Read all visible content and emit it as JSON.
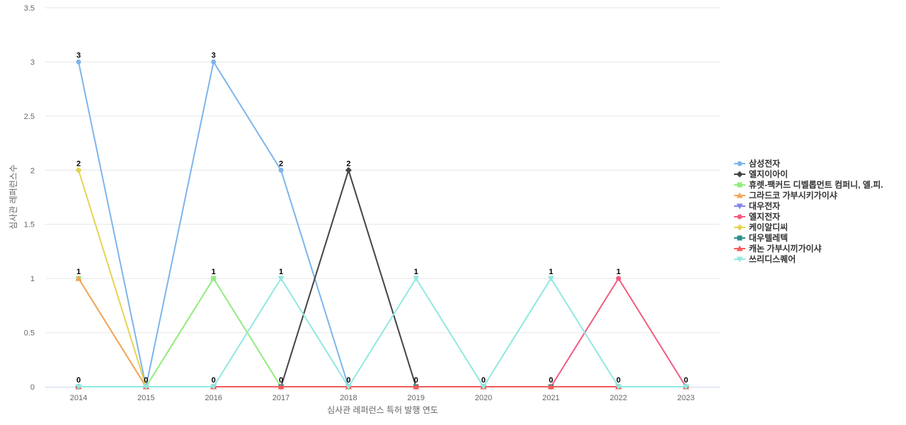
{
  "chart_data": {
    "type": "line",
    "xlabel": "심사관 레퍼런스 특허 발행 연도",
    "ylabel": "심사관 레퍼런스수",
    "ylim": [
      0,
      3.5
    ],
    "yticks": [
      0,
      0.5,
      1,
      1.5,
      2,
      2.5,
      3,
      3.5
    ],
    "grid": true,
    "legend_position": "right",
    "x": [
      "2014",
      "2015",
      "2016",
      "2017",
      "2018",
      "2019",
      "2020",
      "2021",
      "2022",
      "2023"
    ],
    "series": [
      {
        "name": "삼성전자",
        "color": "#7cb5ec",
        "marker": "circle",
        "values": [
          3,
          0,
          3,
          2,
          0,
          0,
          0,
          0,
          0,
          0
        ]
      },
      {
        "name": "엘지이아이",
        "color": "#434348",
        "marker": "diamond",
        "values": [
          0,
          0,
          0,
          0,
          2,
          0,
          0,
          0,
          0,
          0
        ]
      },
      {
        "name": "휴렛-팩커드 디벨롭먼트 컴퍼니, 엘.피.",
        "color": "#90ed7d",
        "marker": "square",
        "values": [
          1,
          0,
          1,
          0,
          0,
          0,
          0,
          0,
          0,
          0
        ]
      },
      {
        "name": "그라드코 가부시키가이샤",
        "color": "#f7a35c",
        "marker": "triangle",
        "values": [
          1,
          0,
          0,
          0,
          0,
          0,
          0,
          0,
          0,
          0
        ]
      },
      {
        "name": "대우전자",
        "color": "#8085e9",
        "marker": "triangle-down",
        "values": [
          0,
          0,
          0,
          0,
          0,
          0,
          0,
          0,
          0,
          0
        ]
      },
      {
        "name": "엘지전자",
        "color": "#f15c80",
        "marker": "circle",
        "values": [
          0,
          0,
          0,
          0,
          0,
          0,
          0,
          0,
          1,
          0
        ]
      },
      {
        "name": "케이알디씨",
        "color": "#e4d354",
        "marker": "diamond",
        "values": [
          2,
          0,
          0,
          0,
          0,
          0,
          0,
          0,
          0,
          0
        ]
      },
      {
        "name": "대우텔레텍",
        "color": "#2b908f",
        "marker": "square",
        "values": [
          0,
          0,
          0,
          0,
          0,
          0,
          0,
          0,
          0,
          0
        ]
      },
      {
        "name": "캐논 가부시끼가이샤",
        "color": "#f45b5b",
        "marker": "triangle",
        "values": [
          0,
          0,
          0,
          0,
          0,
          0,
          0,
          0,
          0,
          0
        ]
      },
      {
        "name": "쓰리디스퀘어",
        "color": "#91e8e1",
        "marker": "triangle-down",
        "values": [
          0,
          0,
          0,
          1,
          0,
          1,
          0,
          1,
          0,
          0
        ]
      }
    ],
    "data_labels": [
      {
        "x": "2014",
        "y": 3,
        "text": "3"
      },
      {
        "x": "2014",
        "y": 2,
        "text": "2"
      },
      {
        "x": "2014",
        "y": 1,
        "text": "1"
      },
      {
        "x": "2014",
        "y": 0,
        "text": "0"
      },
      {
        "x": "2015",
        "y": 0,
        "text": "0"
      },
      {
        "x": "2016",
        "y": 3,
        "text": "3"
      },
      {
        "x": "2016",
        "y": 1,
        "text": "1"
      },
      {
        "x": "2016",
        "y": 0,
        "text": "0"
      },
      {
        "x": "2017",
        "y": 2,
        "text": "2"
      },
      {
        "x": "2017",
        "y": 1,
        "text": "1"
      },
      {
        "x": "2017",
        "y": 0,
        "text": "0"
      },
      {
        "x": "2018",
        "y": 2,
        "text": "2"
      },
      {
        "x": "2018",
        "y": 0,
        "text": "0"
      },
      {
        "x": "2019",
        "y": 1,
        "text": "1"
      },
      {
        "x": "2019",
        "y": 0,
        "text": "0"
      },
      {
        "x": "2020",
        "y": 0,
        "text": "0"
      },
      {
        "x": "2021",
        "y": 1,
        "text": "1"
      },
      {
        "x": "2021",
        "y": 0,
        "text": "0"
      },
      {
        "x": "2022",
        "y": 1,
        "text": "1"
      },
      {
        "x": "2022",
        "y": 0,
        "text": "0"
      },
      {
        "x": "2023",
        "y": 0,
        "text": "0"
      }
    ]
  }
}
